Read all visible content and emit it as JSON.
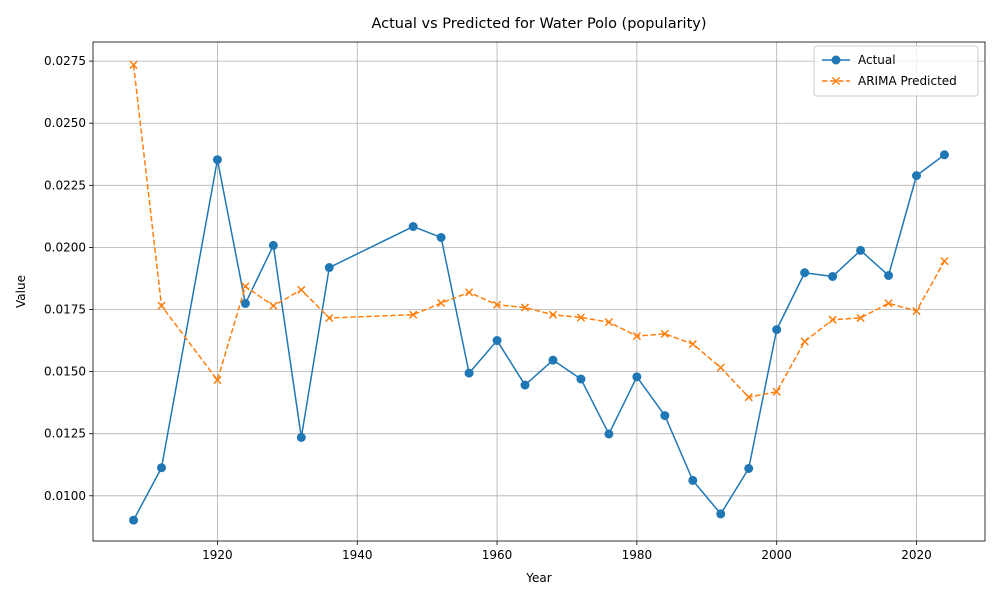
{
  "chart_data": {
    "type": "line",
    "title": "Actual vs Predicted for Water Polo (popularity)",
    "xlabel": "Year",
    "ylabel": "Value",
    "xlim": [
      1902.2,
      2029.8
    ],
    "ylim": [
      0.00818,
      0.02827
    ],
    "x_ticks": [
      1920,
      1940,
      1960,
      1980,
      2000,
      2020
    ],
    "x_tick_labels": [
      "1920",
      "1940",
      "1960",
      "1980",
      "2000",
      "2020"
    ],
    "y_ticks": [
      0.01,
      0.0125,
      0.015,
      0.0175,
      0.02,
      0.0225,
      0.025,
      0.0275
    ],
    "y_tick_labels": [
      "0.0100",
      "0.0125",
      "0.0150",
      "0.0175",
      "0.0200",
      "0.0225",
      "0.0250",
      "0.0275"
    ],
    "grid": true,
    "legend_position": "top-right",
    "x": [
      1908,
      1912,
      1920,
      1924,
      1928,
      1932,
      1936,
      1948,
      1952,
      1956,
      1960,
      1964,
      1968,
      1972,
      1976,
      1980,
      1984,
      1988,
      1992,
      1996,
      2000,
      2004,
      2008,
      2012,
      2016,
      2020,
      2024
    ],
    "series": [
      {
        "name": "Actual",
        "color": "#1f77b4",
        "marker": "circle",
        "linestyle": "solid",
        "values": [
          0.00902,
          0.01113,
          0.02353,
          0.01774,
          0.02008,
          0.01235,
          0.01919,
          0.02084,
          0.0204,
          0.01494,
          0.01625,
          0.01446,
          0.01546,
          0.0147,
          0.01249,
          0.01479,
          0.01323,
          0.01062,
          0.00927,
          0.0111,
          0.01669,
          0.01898,
          0.01883,
          0.01988,
          0.01887,
          0.02289,
          0.02373
        ]
      },
      {
        "name": "ARIMA Predicted",
        "color": "#ff7f0e",
        "marker": "x",
        "linestyle": "dashed",
        "values": [
          0.02735,
          0.01765,
          0.01466,
          0.01843,
          0.01765,
          0.01829,
          0.01716,
          0.01729,
          0.01776,
          0.01819,
          0.01769,
          0.01758,
          0.01729,
          0.01718,
          0.01699,
          0.01643,
          0.01652,
          0.01611,
          0.01516,
          0.01397,
          0.01419,
          0.01621,
          0.01709,
          0.01716,
          0.01775,
          0.01744,
          0.01945
        ]
      }
    ]
  }
}
